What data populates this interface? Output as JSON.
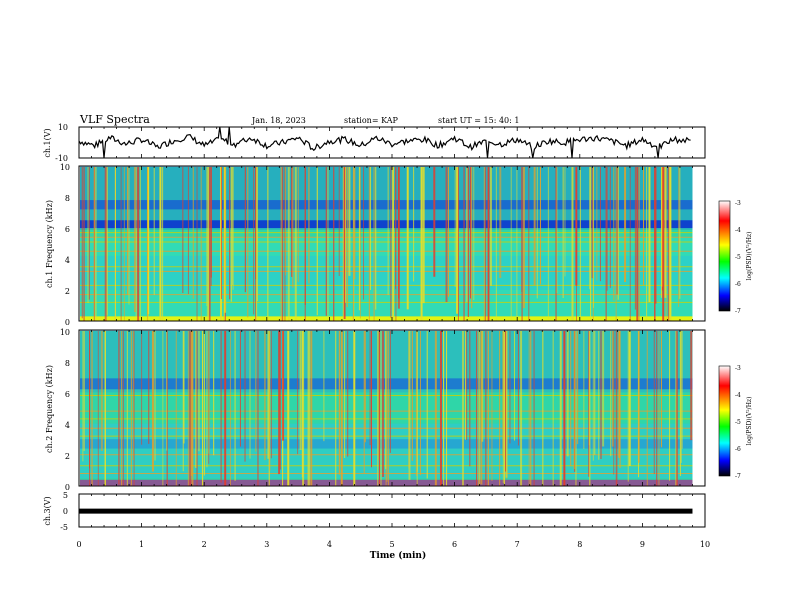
{
  "header": {
    "title": "VLF Spectra",
    "date": "Jan. 18, 2023",
    "station": "station= KAP",
    "start": "start  UT =   15: 40: 1"
  },
  "chart_data": [
    {
      "type": "line",
      "panel": "ch1-waveform",
      "ylabel": "ch.1(V)",
      "ylim": [
        -10,
        10
      ],
      "yticks": [
        "10",
        "-10"
      ],
      "xlim": [
        0,
        10
      ],
      "x": [
        0,
        0.25,
        0.5,
        0.75,
        1.0,
        1.25,
        1.5,
        1.75,
        2.0,
        2.25,
        2.5,
        2.75,
        3.0,
        3.25,
        3.5,
        3.75,
        4.0,
        4.25,
        4.5,
        4.75,
        5.0,
        5.25,
        5.5,
        5.75,
        6.0,
        6.25,
        6.5,
        6.75,
        7.0,
        7.25,
        7.5,
        7.75,
        8.0,
        8.25,
        8.5,
        8.75,
        9.0,
        9.25,
        9.5,
        9.8
      ],
      "values": [
        1,
        -2,
        3,
        -1,
        2,
        -3,
        1,
        4,
        -2,
        2,
        -1,
        3,
        -2,
        0,
        3,
        -4,
        1,
        2,
        -2,
        3,
        -1,
        1,
        2,
        -2,
        3,
        -3,
        1,
        -1,
        2,
        -3,
        1,
        0,
        2,
        3,
        1,
        -2,
        2,
        -3,
        2,
        1
      ]
    },
    {
      "type": "heatmap",
      "panel": "ch1-spectrogram",
      "ylabel": "ch.1 Frequency (kHz)",
      "ylim": [
        0,
        10
      ],
      "yticks": [
        "0",
        "2",
        "4",
        "6",
        "8",
        "10"
      ],
      "xlim": [
        0,
        10
      ],
      "colorbar": {
        "label": "log(PSD)(V²/Hz)",
        "range": [
          -7,
          -3
        ],
        "ticks": [
          "-3",
          "-4",
          "-5",
          "-6",
          "-7"
        ]
      }
    },
    {
      "type": "heatmap",
      "panel": "ch2-spectrogram",
      "ylabel": "ch.2 Frequency (kHz)",
      "ylim": [
        0,
        10
      ],
      "yticks": [
        "0",
        "2",
        "4",
        "6",
        "8",
        "10"
      ],
      "xlim": [
        0,
        10
      ],
      "colorbar": {
        "label": "log(PSD)(V²/Hz)",
        "range": [
          -7,
          -3
        ],
        "ticks": [
          "-3",
          "-4",
          "-5",
          "-6",
          "-7"
        ]
      }
    },
    {
      "type": "line",
      "panel": "ch3-waveform",
      "ylabel": "ch.3(V)",
      "ylim": [
        -5,
        5
      ],
      "yticks": [
        "5",
        "0",
        "-5"
      ],
      "xlim": [
        0,
        10
      ],
      "x": [
        0,
        9.8
      ],
      "values": [
        -0.2,
        -0.2
      ],
      "xlabel": "Time  (min)",
      "xticks": [
        "0",
        "1",
        "2",
        "3",
        "4",
        "5",
        "6",
        "7",
        "8",
        "9",
        "10"
      ]
    }
  ]
}
